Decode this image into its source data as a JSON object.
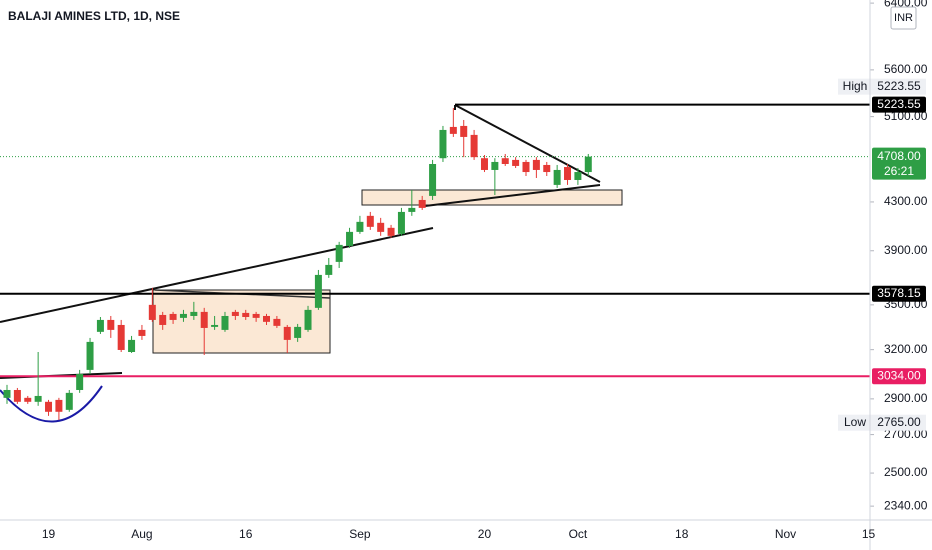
{
  "chart_data": {
    "type": "candlestick",
    "title": "BALAJI AMINES LTD, 1D, NSE",
    "currency": "INR",
    "categories": [
      null,
      null,
      null,
      null,
      "19",
      null,
      null,
      null,
      null,
      null,
      null,
      null,
      null,
      "Aug",
      null,
      null,
      null,
      null,
      null,
      null,
      null,
      null,
      null,
      "16",
      null,
      null,
      null,
      null,
      null,
      null,
      null,
      null,
      null,
      null,
      "Sep",
      null,
      null,
      null,
      null,
      null,
      null,
      null,
      null,
      null,
      null,
      null,
      "20",
      null,
      null,
      null,
      null,
      null,
      null,
      null,
      null,
      "Oct",
      null,
      null,
      null,
      null,
      null,
      null,
      null,
      null,
      null,
      "18",
      null,
      null,
      null,
      null,
      null,
      null,
      null,
      null,
      null,
      "Nov",
      null,
      null,
      null,
      null,
      null,
      null,
      null,
      "15"
    ],
    "open": [
      2906,
      2952,
      2906,
      2883,
      2883,
      2894,
      2837,
      2952,
      3073,
      3316,
      3396,
      3362,
      3185,
      3329,
      3500,
      3430,
      3437,
      3410,
      3423,
      3451,
      3349,
      3329,
      3451,
      3444,
      3437,
      3423,
      3403,
      3349,
      3276,
      3329,
      3479,
      3716,
      3814,
      3938,
      4050,
      4182,
      4124,
      4083,
      4034,
      4215,
      4317,
      4352,
      4693,
      4996,
      5006,
      4917,
      4693,
      4584,
      4693,
      4677,
      4658,
      4677,
      4630,
      4449,
      4611,
      4493,
      4565,
      null,
      null,
      null,
      null,
      null,
      null,
      null,
      null,
      null,
      null,
      null,
      null,
      null,
      null,
      null,
      null,
      null,
      null,
      null,
      null,
      null,
      null,
      null,
      null,
      null,
      null,
      null
    ],
    "high": [
      2982,
      2964,
      2917,
      3185,
      2894,
      2906,
      2952,
      3073,
      3276,
      3416,
      3423,
      3396,
      3289,
      3362,
      3621,
      3451,
      3451,
      3465,
      3521,
      3479,
      3423,
      3451,
      3465,
      3465,
      3451,
      3437,
      3423,
      3362,
      3369,
      3493,
      3753,
      3844,
      3970,
      4083,
      4182,
      4215,
      4165,
      4107,
      4249,
      4404,
      4352,
      4677,
      5006,
      5189,
      5066,
      4966,
      4723,
      4693,
      4733,
      4703,
      4677,
      4703,
      4658,
      4630,
      4639,
      4602,
      4733,
      null,
      null,
      null,
      null,
      null,
      null,
      null,
      null,
      null,
      null,
      null,
      null,
      null,
      null,
      null,
      null,
      null,
      null,
      null,
      null,
      null,
      null,
      null,
      null,
      null,
      null,
      null
    ],
    "low": [
      2871,
      2871,
      2871,
      2860,
      2803,
      2780,
      2826,
      2935,
      3048,
      3302,
      3276,
      3185,
      3179,
      3263,
      3383,
      3329,
      3369,
      3383,
      3396,
      3166,
      3329,
      3316,
      3396,
      3396,
      3383,
      3362,
      3342,
      3179,
      3250,
      3316,
      3465,
      3694,
      3768,
      3922,
      4034,
      4066,
      4018,
      4002,
      4018,
      4182,
      4232,
      4317,
      4658,
      4897,
      4703,
      4677,
      4565,
      4360,
      4621,
      4602,
      4529,
      4511,
      4529,
      4422,
      4449,
      4449,
      4529,
      null,
      null,
      null,
      null,
      null,
      null,
      null,
      null,
      null,
      null,
      null,
      null,
      null,
      null,
      null,
      null,
      null,
      null,
      null,
      null,
      null,
      null,
      null,
      null,
      null,
      null,
      null
    ],
    "close": [
      2952,
      2883,
      2883,
      2917,
      2826,
      2826,
      2935,
      3048,
      3250,
      3396,
      3329,
      3198,
      3263,
      3289,
      3396,
      3362,
      3396,
      3437,
      3451,
      3342,
      3362,
      3423,
      3423,
      3416,
      3410,
      3383,
      3356,
      3263,
      3349,
      3465,
      3716,
      3791,
      3946,
      4050,
      4132,
      4091,
      4050,
      4018,
      4215,
      4249,
      4249,
      4639,
      4966,
      4927,
      4897,
      4703,
      4584,
      4658,
      4639,
      4621,
      4565,
      4584,
      4565,
      4584,
      4493,
      4565,
      4708,
      null,
      null,
      null,
      null,
      null,
      null,
      null,
      null,
      null,
      null,
      null,
      null,
      null,
      null,
      null,
      null,
      null,
      null,
      null,
      null,
      null,
      null,
      null,
      null,
      null,
      null,
      null
    ],
    "up_color": "#2e9e45",
    "down_color": "#e53935",
    "ylim": [
      2276,
      6440
    ],
    "log_scale": true,
    "grid": false,
    "yticks": [
      {
        "value": 6400,
        "label": "6400.00"
      },
      {
        "value": 5600,
        "label": "5600.00"
      },
      {
        "value": 5100,
        "label": "5100.00"
      },
      {
        "value": 4300,
        "label": "4300.00"
      },
      {
        "value": 3900,
        "label": "3900.00"
      },
      {
        "value": 3500,
        "label": "3500.00"
      },
      {
        "value": 3200,
        "label": "3200.00"
      },
      {
        "value": 2900,
        "label": "2900.00"
      },
      {
        "value": 2700,
        "label": "2700.00"
      },
      {
        "value": 2500,
        "label": "2500.00"
      },
      {
        "value": 2340,
        "label": "2340.00"
      }
    ],
    "price_lines": [
      {
        "value": 5223.55,
        "label": "5223.55",
        "color": "#000000"
      },
      {
        "value": 3578.15,
        "label": "3578.15",
        "color": "#000000"
      },
      {
        "value": 3034,
        "label": "3034.00",
        "color": "#e91e63"
      }
    ],
    "last_price": {
      "value": 4708,
      "label": "4708.00",
      "countdown": "26:21",
      "color": "#2e9e45"
    },
    "high_marker": {
      "name": "High",
      "value": 5223.55,
      "label": "5223.55"
    },
    "low_marker": {
      "name": "Low",
      "value": 2765,
      "label": "2765.00"
    }
  }
}
